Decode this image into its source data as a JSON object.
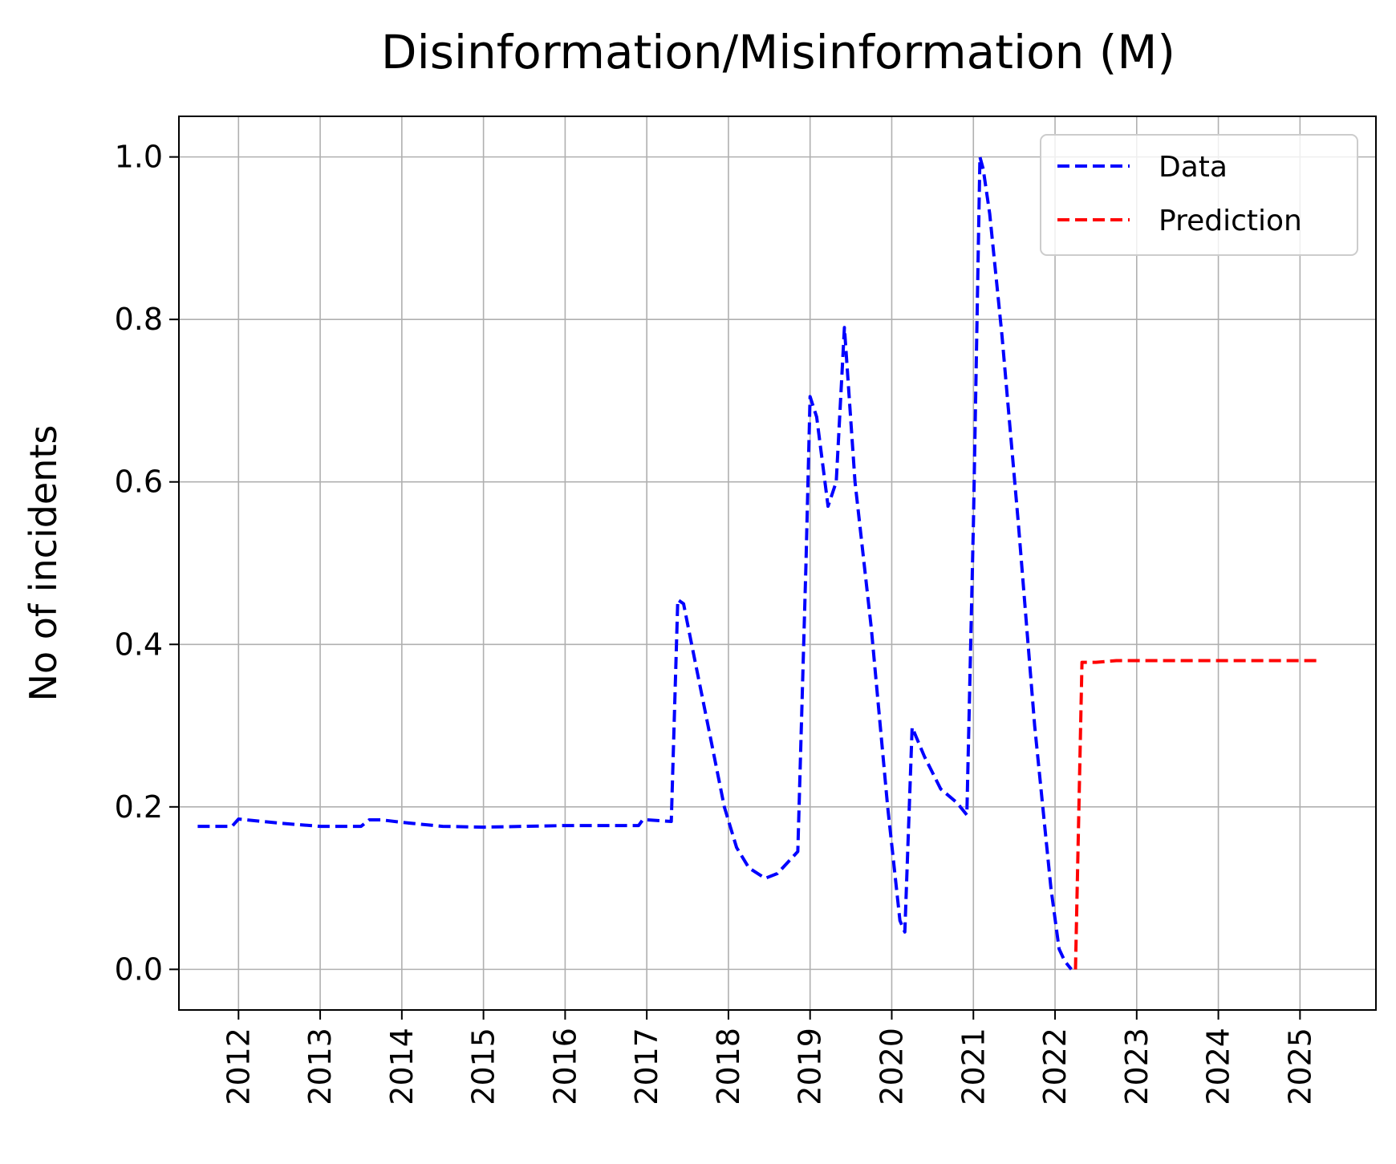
{
  "chart_data": {
    "type": "line",
    "title": "Disinformation/Misinformation (M)",
    "xlabel": "",
    "ylabel": "No of incidents",
    "xlim": [
      2011.27,
      2025.93
    ],
    "ylim": [
      -0.05,
      1.05
    ],
    "x_ticks": [
      2012,
      2013,
      2014,
      2015,
      2016,
      2017,
      2018,
      2019,
      2020,
      2021,
      2022,
      2023,
      2024,
      2025
    ],
    "x_tick_labels": [
      "2012",
      "2013",
      "2014",
      "2015",
      "2016",
      "2017",
      "2018",
      "2019",
      "2020",
      "2021",
      "2022",
      "2023",
      "2024",
      "2025"
    ],
    "y_ticks": [
      0.0,
      0.2,
      0.4,
      0.6,
      0.8,
      1.0
    ],
    "y_tick_labels": [
      "0.0",
      "0.2",
      "0.4",
      "0.6",
      "0.8",
      "1.0"
    ],
    "grid": true,
    "legend": "top-right",
    "series": [
      {
        "name": "Data",
        "color": "#0000ff",
        "style": "dashed",
        "points": [
          [
            2011.5,
            0.176
          ],
          [
            2011.92,
            0.176
          ],
          [
            2012.0,
            0.185
          ],
          [
            2012.5,
            0.18
          ],
          [
            2013.0,
            0.176
          ],
          [
            2013.5,
            0.176
          ],
          [
            2013.6,
            0.184
          ],
          [
            2013.75,
            0.184
          ],
          [
            2014.0,
            0.181
          ],
          [
            2014.5,
            0.176
          ],
          [
            2015.0,
            0.175
          ],
          [
            2015.5,
            0.176
          ],
          [
            2016.0,
            0.177
          ],
          [
            2016.5,
            0.177
          ],
          [
            2016.9,
            0.177
          ],
          [
            2016.95,
            0.184
          ],
          [
            2017.0,
            0.184
          ],
          [
            2017.3,
            0.182
          ],
          [
            2017.38,
            0.455
          ],
          [
            2017.45,
            0.45
          ],
          [
            2017.55,
            0.4
          ],
          [
            2017.75,
            0.3
          ],
          [
            2017.95,
            0.2
          ],
          [
            2018.1,
            0.15
          ],
          [
            2018.25,
            0.125
          ],
          [
            2018.45,
            0.112
          ],
          [
            2018.6,
            0.118
          ],
          [
            2018.85,
            0.145
          ],
          [
            2018.95,
            0.5
          ],
          [
            2019.0,
            0.705
          ],
          [
            2019.08,
            0.68
          ],
          [
            2019.22,
            0.57
          ],
          [
            2019.32,
            0.6
          ],
          [
            2019.42,
            0.79
          ],
          [
            2019.55,
            0.6
          ],
          [
            2019.75,
            0.42
          ],
          [
            2019.95,
            0.2
          ],
          [
            2020.1,
            0.06
          ],
          [
            2020.16,
            0.046
          ],
          [
            2020.25,
            0.298
          ],
          [
            2020.4,
            0.262
          ],
          [
            2020.6,
            0.222
          ],
          [
            2020.8,
            0.205
          ],
          [
            2020.92,
            0.19
          ],
          [
            2021.0,
            0.55
          ],
          [
            2021.08,
            1.0
          ],
          [
            2021.12,
            0.985
          ],
          [
            2021.2,
            0.93
          ],
          [
            2021.35,
            0.78
          ],
          [
            2021.55,
            0.55
          ],
          [
            2021.75,
            0.3
          ],
          [
            2021.95,
            0.1
          ],
          [
            2022.05,
            0.025
          ],
          [
            2022.12,
            0.01
          ],
          [
            2022.2,
            0.0
          ]
        ]
      },
      {
        "name": "Prediction",
        "color": "#ff0000",
        "style": "dashed",
        "points": [
          [
            2022.25,
            0.0
          ],
          [
            2022.33,
            0.378
          ],
          [
            2022.5,
            0.378
          ],
          [
            2022.75,
            0.38
          ],
          [
            2023.0,
            0.38
          ],
          [
            2023.5,
            0.38
          ],
          [
            2024.0,
            0.38
          ],
          [
            2024.5,
            0.38
          ],
          [
            2025.0,
            0.38
          ],
          [
            2025.25,
            0.38
          ]
        ]
      }
    ]
  }
}
